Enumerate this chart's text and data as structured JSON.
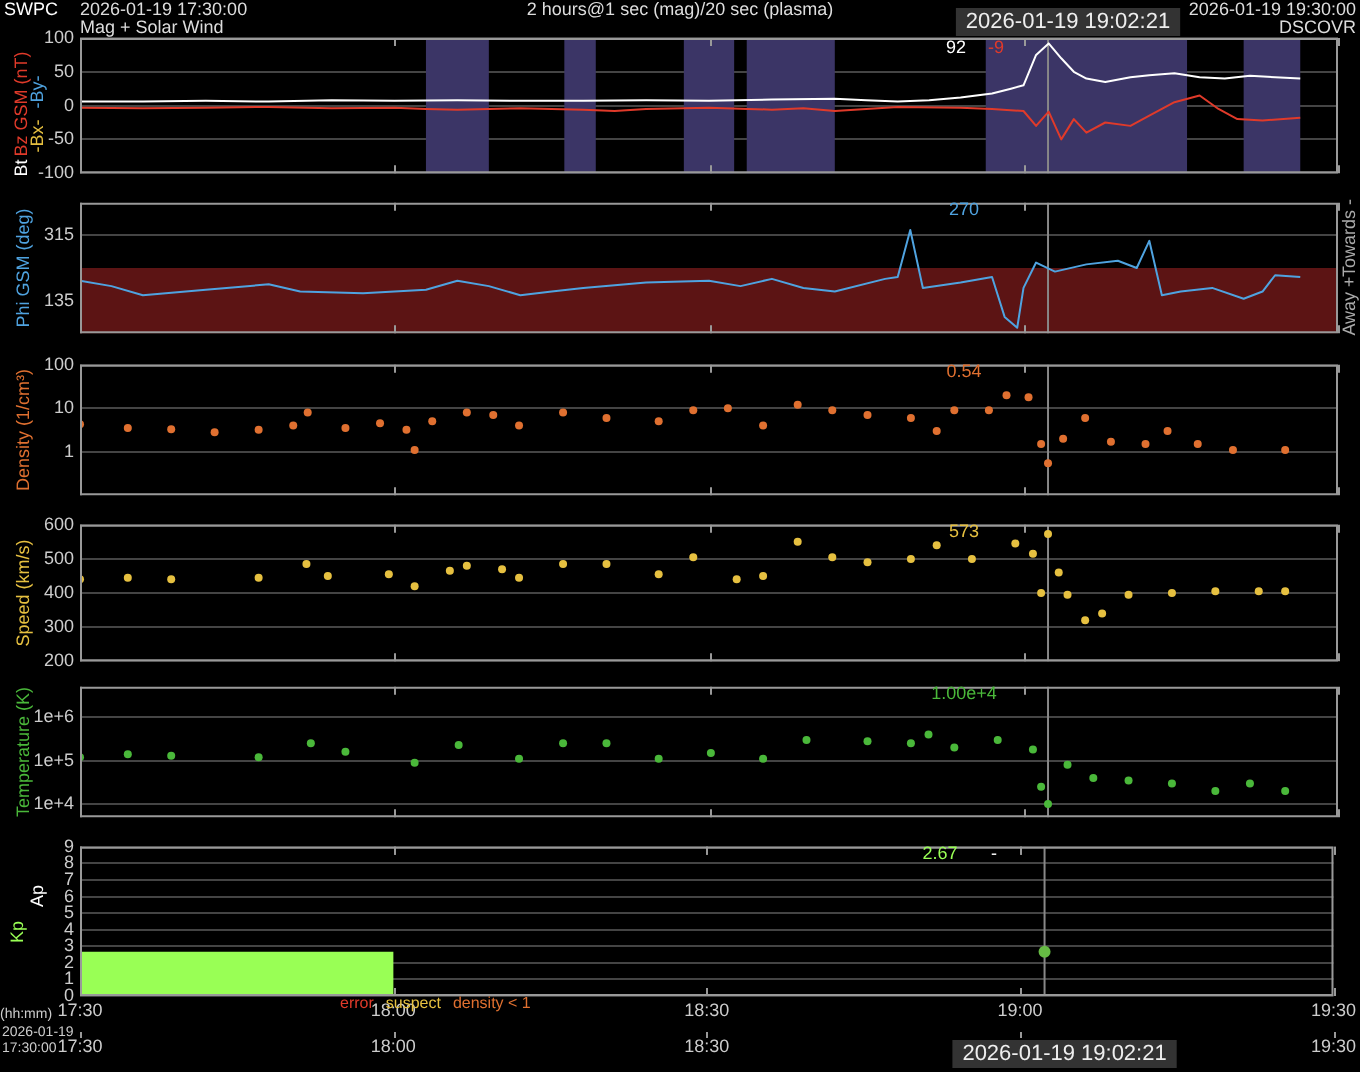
{
  "chart_data": [
    {
      "type": "line",
      "title": "2 hours@1 sec (mag)/20 sec (plasma)",
      "xlim": [
        17.5,
        19.5
      ],
      "xticks": [
        {
          "value": 17.5,
          "label": null
        },
        {
          "value": 18,
          "label": null
        },
        {
          "value": 18.5,
          "label": null
        },
        {
          "value": 19,
          "label": null
        },
        {
          "value": 19.5,
          "label": null
        }
      ],
      "ylim": [
        -100,
        100
      ],
      "yticks": [
        -100,
        -50,
        0,
        50,
        100
      ],
      "grid": "y",
      "tick_labels": "y",
      "legend": "left",
      "annotations": [
        "SWPC",
        "2026-01-19 17:30:00",
        "Mag + Solar Wind",
        "2026-01-19 19:30:00",
        "DSCOVR",
        "92",
        "-9",
        "-Bx-",
        "-By-"
      ],
      "ref_lines": [
        {
          "axis": "x",
          "value": 19.039,
          "label": "2026-01-19 19:02:21",
          "color": "#888888"
        }
      ],
      "bands": [
        {
          "axis": "x",
          "from": 18.05,
          "to": 18.15,
          "color": "#3b3566"
        },
        {
          "axis": "x",
          "from": 18.27,
          "to": 18.32,
          "color": "#3b3566"
        },
        {
          "axis": "x",
          "from": 18.46,
          "to": 18.54,
          "color": "#3b3566"
        },
        {
          "axis": "x",
          "from": 18.56,
          "to": 18.7,
          "color": "#3b3566"
        },
        {
          "axis": "x",
          "from": 18.94,
          "to": 19.26,
          "color": "#3b3566"
        },
        {
          "axis": "x",
          "from": 19.35,
          "to": 19.44,
          "color": "#3b3566"
        }
      ],
      "series": [
        {
          "name": "Bt",
          "color": "#ffffff",
          "x": [
            17.5,
            17.6,
            17.7,
            17.8,
            17.9,
            18.0,
            18.1,
            18.2,
            18.3,
            18.4,
            18.5,
            18.6,
            18.7,
            18.75,
            18.8,
            18.85,
            18.9,
            18.95,
            18.98,
            19.0,
            19.02,
            19.04,
            19.06,
            19.08,
            19.1,
            19.13,
            19.17,
            19.2,
            19.24,
            19.28,
            19.32,
            19.36,
            19.4,
            19.44
          ],
          "values": [
            6,
            6,
            7,
            6,
            8,
            7,
            8,
            7,
            7,
            8,
            7,
            9,
            10,
            8,
            6,
            8,
            12,
            18,
            25,
            30,
            75,
            92,
            70,
            50,
            40,
            35,
            42,
            45,
            48,
            42,
            40,
            44,
            42,
            40
          ]
        },
        {
          "name": "Bz GSM (nT)",
          "color": "#e03a2a",
          "x": [
            17.5,
            17.6,
            17.7,
            17.8,
            17.9,
            18.0,
            18.05,
            18.1,
            18.2,
            18.3,
            18.35,
            18.4,
            18.5,
            18.6,
            18.65,
            18.7,
            18.75,
            18.8,
            18.9,
            18.95,
            19.0,
            19.02,
            19.04,
            19.06,
            19.08,
            19.1,
            19.13,
            19.17,
            19.2,
            19.24,
            19.28,
            19.31,
            19.34,
            19.38,
            19.44
          ],
          "values": [
            -3,
            -4,
            -3,
            -2,
            -4,
            -3,
            -5,
            -6,
            -4,
            -6,
            -8,
            -5,
            -3,
            -6,
            -4,
            -8,
            -5,
            -2,
            -3,
            -5,
            -8,
            -30,
            -9,
            -50,
            -20,
            -40,
            -25,
            -30,
            -15,
            5,
            15,
            -5,
            -20,
            -22,
            -18
          ]
        }
      ]
    },
    {
      "type": "line",
      "ylabel": "Phi GSM (deg)",
      "xlim": [
        17.5,
        19.5
      ],
      "xticks": [
        {
          "value": 17.5,
          "label": null
        },
        {
          "value": 18,
          "label": null
        },
        {
          "value": 18.5,
          "label": null
        },
        {
          "value": 19,
          "label": null
        },
        {
          "value": 19.5,
          "label": null
        }
      ],
      "ylim": [
        45,
        405
      ],
      "yticks": [
        135,
        315
      ],
      "grid": "y",
      "tick_labels": "y",
      "annotations": [
        "270",
        "Towards -",
        "Away +"
      ],
      "ref_lines": [
        {
          "axis": "x",
          "value": 19.039,
          "color": "#888888"
        }
      ],
      "bands": [
        {
          "axis": "y",
          "from": 45,
          "to": 225,
          "color": "#5c1414"
        }
      ],
      "series": [
        {
          "color": "#4fa3e0",
          "x": [
            17.5,
            17.55,
            17.6,
            17.7,
            17.8,
            17.85,
            17.95,
            18.05,
            18.1,
            18.15,
            18.2,
            18.25,
            18.3,
            18.4,
            18.5,
            18.55,
            18.6,
            18.65,
            18.7,
            18.78,
            18.8,
            18.82,
            18.84,
            18.9,
            18.95,
            18.97,
            18.99,
            19.0,
            19.02,
            19.05,
            19.1,
            19.15,
            19.18,
            19.2,
            19.22,
            19.25,
            19.3,
            19.35,
            19.38,
            19.4,
            19.44
          ],
          "values": [
            190,
            175,
            150,
            165,
            180,
            160,
            155,
            165,
            190,
            175,
            150,
            160,
            170,
            185,
            190,
            175,
            195,
            170,
            160,
            195,
            200,
            330,
            170,
            185,
            200,
            90,
            60,
            170,
            240,
            215,
            235,
            245,
            225,
            300,
            150,
            160,
            170,
            140,
            160,
            205,
            200
          ]
        }
      ]
    },
    {
      "type": "scatter",
      "ylabel": "Density (1/cm³)",
      "log": true,
      "marker": "circle",
      "xlim": [
        17.5,
        19.5
      ],
      "xticks": [
        {
          "value": 17.5,
          "label": null
        },
        {
          "value": 18,
          "label": null
        },
        {
          "value": 18.5,
          "label": null
        },
        {
          "value": 19,
          "label": null
        },
        {
          "value": 19.5,
          "label": null
        }
      ],
      "ylim": [
        0.1,
        100
      ],
      "yticks": [
        1,
        10,
        100
      ],
      "grid": "y",
      "tick_labels": "y",
      "annotations": [
        "0.54"
      ],
      "ref_lines": [
        {
          "axis": "x",
          "value": 19.039,
          "color": "#888888"
        }
      ],
      "series": [
        {
          "color": "#e07030",
          "x": [
            17.5,
            17.576,
            17.645,
            17.714,
            17.784,
            17.839,
            17.862,
            17.922,
            17.977,
            18.019,
            18.032,
            18.06,
            18.115,
            18.157,
            18.198,
            18.268,
            18.337,
            18.42,
            18.475,
            18.53,
            18.586,
            18.641,
            18.696,
            18.752,
            18.821,
            18.862,
            18.89,
            18.945,
            18.973,
            19.008,
            19.028,
            19.039,
            19.063,
            19.098,
            19.139,
            19.194,
            19.229,
            19.277,
            19.333,
            19.416
          ],
          "values": [
            4.3,
            3.5,
            3.3,
            2.8,
            3.2,
            4,
            8,
            3.5,
            4.5,
            3.2,
            1.1,
            5,
            8,
            7,
            4,
            8,
            6,
            5,
            9,
            10,
            4,
            12,
            9,
            7,
            6,
            3,
            9,
            9,
            20,
            18,
            1.5,
            0.54,
            2,
            6,
            1.7,
            1.5,
            3,
            1.5,
            1.1,
            1.1
          ]
        }
      ]
    },
    {
      "type": "scatter",
      "ylabel": "Speed (km/s)",
      "marker": "circle",
      "xlim": [
        17.5,
        19.5
      ],
      "xticks": [
        {
          "value": 17.5,
          "label": null
        },
        {
          "value": 18,
          "label": null
        },
        {
          "value": 18.5,
          "label": null
        },
        {
          "value": 19,
          "label": null
        },
        {
          "value": 19.5,
          "label": null
        }
      ],
      "ylim": [
        200,
        600
      ],
      "yticks": [
        200,
        300,
        400,
        500,
        600
      ],
      "grid": "y",
      "tick_labels": "y",
      "annotations": [
        "573"
      ],
      "ref_lines": [
        {
          "axis": "x",
          "value": 19.039,
          "color": "#888888"
        }
      ],
      "series": [
        {
          "color": "#e6c040",
          "x": [
            17.5,
            17.576,
            17.645,
            17.784,
            17.86,
            17.894,
            17.991,
            18.032,
            18.088,
            18.115,
            18.171,
            18.198,
            18.268,
            18.337,
            18.42,
            18.475,
            18.544,
            18.586,
            18.641,
            18.696,
            18.752,
            18.821,
            18.862,
            18.918,
            18.987,
            19.015,
            19.028,
            19.039,
            19.056,
            19.07,
            19.098,
            19.125,
            19.167,
            19.236,
            19.305,
            19.374,
            19.416
          ],
          "values": [
            440,
            445,
            440,
            445,
            485,
            450,
            455,
            420,
            465,
            480,
            470,
            445,
            485,
            485,
            455,
            505,
            440,
            450,
            550,
            505,
            490,
            500,
            540,
            500,
            545,
            515,
            400,
            573,
            460,
            395,
            320,
            340,
            395,
            400,
            405,
            405,
            405
          ]
        }
      ]
    },
    {
      "type": "scatter",
      "ylabel": "Temperature (K)",
      "log": true,
      "marker": "circle",
      "xlim": [
        17.5,
        19.5
      ],
      "xticks": [
        {
          "value": 17.5,
          "label": null
        },
        {
          "value": 18,
          "label": null
        },
        {
          "value": 18.5,
          "label": null
        },
        {
          "value": 19,
          "label": null
        },
        {
          "value": 19.5,
          "label": null
        }
      ],
      "ylim": [
        5000,
        5000000
      ],
      "yticks": [
        {
          "value": 10000,
          "label": "1e+4"
        },
        {
          "value": 100000,
          "label": "1e+5"
        },
        {
          "value": 1000000,
          "label": "1e+6"
        }
      ],
      "grid": "y",
      "tick_labels": "y",
      "annotations": [
        "1.00e+4"
      ],
      "ref_lines": [
        {
          "axis": "x",
          "value": 19.039,
          "color": "#888888"
        }
      ],
      "series": [
        {
          "color": "#4ab83a",
          "x": [
            17.5,
            17.576,
            17.645,
            17.784,
            17.867,
            17.922,
            18.032,
            18.102,
            18.198,
            18.268,
            18.337,
            18.42,
            18.503,
            18.586,
            18.655,
            18.752,
            18.821,
            18.849,
            18.89,
            18.959,
            19.015,
            19.028,
            19.039,
            19.07,
            19.111,
            19.167,
            19.236,
            19.305,
            19.36,
            19.416
          ],
          "values": [
            120000,
            140000,
            130000,
            120000,
            250000,
            160000,
            90000,
            230000,
            110000,
            250000,
            250000,
            110000,
            150000,
            110000,
            300000,
            280000,
            250000,
            400000,
            200000,
            300000,
            180000,
            25000,
            10000,
            80000,
            40000,
            35000,
            30000,
            20000,
            30000,
            20000
          ]
        }
      ]
    },
    {
      "type": "histogram",
      "xlabel": "(hh:mm)",
      "x2label": "2026-01-19 17:30:00",
      "legend": "left",
      "marker": "circle",
      "xlim": [
        17.5,
        19.5
      ],
      "xticks": [
        {
          "value": 17.5,
          "label": "17:30"
        },
        {
          "value": 18,
          "label": "18:00"
        },
        {
          "value": 18.5,
          "label": "18:30"
        },
        {
          "value": 19,
          "label": "19:00"
        },
        {
          "value": 19.5,
          "label": "19:30"
        }
      ],
      "x2lim": [
        17.5,
        19.5
      ],
      "x2ticks": [
        {
          "value": 17.5,
          "label": "17:30"
        },
        {
          "value": 18,
          "label": "18:00"
        },
        {
          "value": 18.5,
          "label": "18:30"
        },
        {
          "value": 19,
          "label": null
        },
        {
          "value": 19.5,
          "label": "19:30"
        }
      ],
      "ylim": [
        0,
        9
      ],
      "yticks": [
        0,
        1,
        2,
        3,
        4,
        5,
        6,
        7,
        8,
        9
      ],
      "grid": "y",
      "annotations": [
        "Ap",
        "2.67",
        "-",
        "error",
        "suspect",
        "density < 1"
      ],
      "ref_lines": [
        {
          "axis": "x",
          "value": 19.039,
          "label": "2026-01-19 19:02:21",
          "color": "#888888"
        }
      ],
      "series": [
        {
          "name": "Kp",
          "color": "#99ff55",
          "bins": [
            17.5,
            18
          ],
          "values": [
            2.67
          ]
        },
        {
          "type": "scatter",
          "color": "#66bb44",
          "x": [
            19.039
          ],
          "values": [
            2.67
          ]
        }
      ]
    }
  ]
}
